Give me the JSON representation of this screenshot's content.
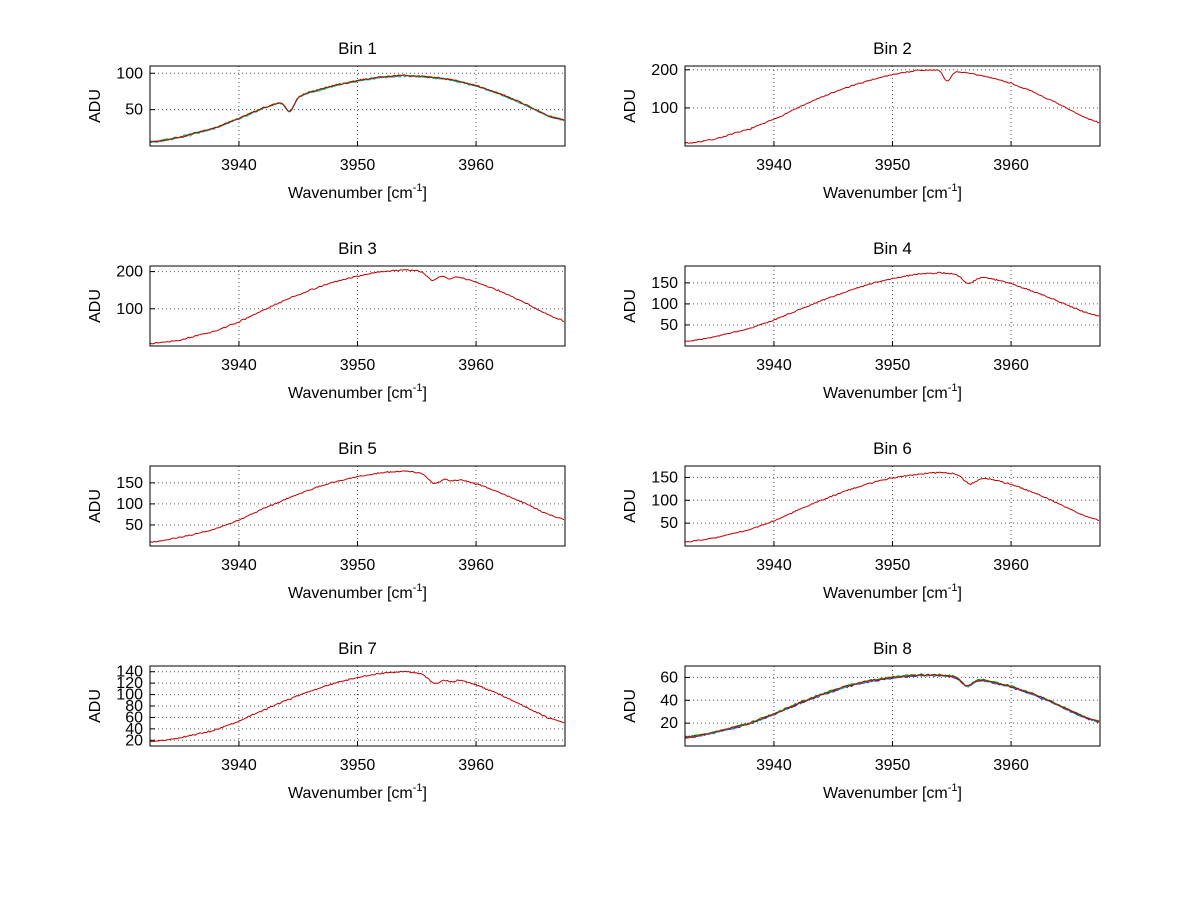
{
  "figure": {
    "background": "#ffffff",
    "ylabel": "ADU",
    "xlabel": {
      "base": "Wavenumber [cm",
      "sup": "-1",
      "end": "]"
    },
    "x_ticks": [
      3940,
      3950,
      3960
    ],
    "xlim": [
      3932.5,
      3967.5
    ],
    "grid_color": "#555555",
    "axis_color": "#000000",
    "trace_color": "#c00000"
  },
  "chart_data": [
    {
      "title": "Bin 1",
      "type": "line",
      "xlabel": "Wavenumber [cm^-1]",
      "ylabel": "ADU",
      "xlim": [
        3932.5,
        3967.5
      ],
      "ylim": [
        0,
        110
      ],
      "y_ticks": [
        50,
        100
      ],
      "x": [
        3933,
        3935,
        3938,
        3940,
        3942,
        3944,
        3946,
        3948,
        3950,
        3952,
        3954,
        3956,
        3958,
        3960,
        3962,
        3964,
        3966,
        3967.5
      ],
      "y": [
        6,
        12,
        25,
        38,
        52,
        63,
        74,
        83,
        90,
        95,
        97,
        95,
        91,
        83,
        72,
        58,
        42,
        35
      ],
      "dips": [
        {
          "x": 3944.3,
          "depth": 17,
          "width": 0.35
        }
      ],
      "noise": 1.3,
      "series": [
        {
          "name": "trace-cyan",
          "color": "#00b6b6",
          "seed": 21,
          "offset": -0.8
        },
        {
          "name": "trace-green",
          "color": "#00a000",
          "seed": 31,
          "offset": 0.3
        },
        {
          "name": "trace-red",
          "color": "#c00000",
          "seed": 41,
          "offset": 0
        }
      ]
    },
    {
      "title": "Bin 2",
      "type": "line",
      "xlabel": "Wavenumber [cm^-1]",
      "ylabel": "ADU",
      "xlim": [
        3932.5,
        3967.5
      ],
      "ylim": [
        0,
        210
      ],
      "y_ticks": [
        100,
        200
      ],
      "x": [
        3933,
        3935,
        3938,
        3940,
        3942,
        3944,
        3946,
        3948,
        3950,
        3952,
        3954,
        3956,
        3958,
        3960,
        3962,
        3964,
        3966,
        3967.5
      ],
      "y": [
        8,
        18,
        45,
        70,
        100,
        128,
        152,
        172,
        188,
        198,
        200,
        193,
        182,
        165,
        140,
        110,
        78,
        60
      ],
      "dips": [
        {
          "x": 3954.6,
          "depth": 28,
          "width": 0.3
        }
      ],
      "noise": 2.2,
      "series": [
        {
          "name": "trace-red",
          "color": "#c00000",
          "seed": 7,
          "offset": 0
        }
      ]
    },
    {
      "title": "Bin 3",
      "type": "line",
      "xlabel": "Wavenumber [cm^-1]",
      "ylabel": "ADU",
      "xlim": [
        3932.5,
        3967.5
      ],
      "ylim": [
        0,
        215
      ],
      "y_ticks": [
        100,
        200
      ],
      "x": [
        3933,
        3935,
        3938,
        3940,
        3942,
        3944,
        3946,
        3948,
        3950,
        3952,
        3954,
        3956,
        3958,
        3960,
        3962,
        3964,
        3966,
        3967.5
      ],
      "y": [
        8,
        16,
        40,
        65,
        95,
        125,
        150,
        172,
        188,
        200,
        205,
        200,
        190,
        172,
        148,
        118,
        85,
        66
      ],
      "dips": [
        {
          "x": 3956.3,
          "depth": 22,
          "width": 0.45
        },
        {
          "x": 3957.7,
          "depth": 10,
          "width": 0.35
        }
      ],
      "noise": 2.2,
      "series": [
        {
          "name": "trace-red",
          "color": "#c00000",
          "seed": 13,
          "offset": 0
        }
      ]
    },
    {
      "title": "Bin 4",
      "type": "line",
      "xlabel": "Wavenumber [cm^-1]",
      "ylabel": "ADU",
      "xlim": [
        3932.5,
        3967.5
      ],
      "ylim": [
        0,
        190
      ],
      "y_ticks": [
        50,
        100,
        150
      ],
      "x": [
        3933,
        3935,
        3938,
        3940,
        3942,
        3944,
        3946,
        3948,
        3950,
        3952,
        3954,
        3956,
        3958,
        3960,
        3962,
        3964,
        3966,
        3967.5
      ],
      "y": [
        12,
        22,
        42,
        62,
        85,
        108,
        128,
        147,
        160,
        170,
        174,
        170,
        162,
        148,
        128,
        106,
        82,
        70
      ],
      "dips": [
        {
          "x": 3956.4,
          "depth": 20,
          "width": 0.5
        }
      ],
      "noise": 2.0,
      "series": [
        {
          "name": "trace-red",
          "color": "#c00000",
          "seed": 17,
          "offset": 0
        }
      ]
    },
    {
      "title": "Bin 5",
      "type": "line",
      "xlabel": "Wavenumber [cm^-1]",
      "ylabel": "ADU",
      "xlim": [
        3932.5,
        3967.5
      ],
      "ylim": [
        0,
        190
      ],
      "y_ticks": [
        50,
        100,
        150
      ],
      "x": [
        3933,
        3935,
        3938,
        3940,
        3942,
        3944,
        3946,
        3948,
        3950,
        3952,
        3954,
        3956,
        3958,
        3960,
        3962,
        3964,
        3966,
        3967.5
      ],
      "y": [
        10,
        20,
        40,
        62,
        88,
        112,
        134,
        152,
        165,
        174,
        178,
        172,
        163,
        148,
        127,
        103,
        76,
        62
      ],
      "dips": [
        {
          "x": 3956.5,
          "depth": 22,
          "width": 0.5
        },
        {
          "x": 3957.9,
          "depth": 9,
          "width": 0.35
        }
      ],
      "noise": 2.0,
      "series": [
        {
          "name": "trace-red",
          "color": "#c00000",
          "seed": 23,
          "offset": 0
        }
      ]
    },
    {
      "title": "Bin 6",
      "type": "line",
      "xlabel": "Wavenumber [cm^-1]",
      "ylabel": "ADU",
      "xlim": [
        3932.5,
        3967.5
      ],
      "ylim": [
        0,
        175
      ],
      "y_ticks": [
        50,
        100,
        150
      ],
      "x": [
        3933,
        3935,
        3938,
        3940,
        3942,
        3944,
        3946,
        3948,
        3950,
        3952,
        3954,
        3956,
        3958,
        3960,
        3962,
        3964,
        3966,
        3967.5
      ],
      "y": [
        10,
        18,
        36,
        55,
        78,
        100,
        120,
        137,
        149,
        157,
        161,
        156,
        148,
        135,
        116,
        93,
        68,
        56
      ],
      "dips": [
        {
          "x": 3956.5,
          "depth": 18,
          "width": 0.5
        }
      ],
      "noise": 1.8,
      "series": [
        {
          "name": "trace-red",
          "color": "#c00000",
          "seed": 29,
          "offset": 0
        }
      ]
    },
    {
      "title": "Bin 7",
      "type": "line",
      "xlabel": "Wavenumber [cm^-1]",
      "ylabel": "ADU",
      "xlim": [
        3932.5,
        3967.5
      ],
      "ylim": [
        10,
        150
      ],
      "y_ticks": [
        20,
        40,
        60,
        80,
        100,
        120,
        140
      ],
      "x": [
        3933,
        3935,
        3938,
        3940,
        3942,
        3944,
        3946,
        3948,
        3950,
        3952,
        3954,
        3956,
        3958,
        3960,
        3962,
        3964,
        3966,
        3967.5
      ],
      "y": [
        18,
        24,
        38,
        54,
        72,
        90,
        106,
        120,
        130,
        137,
        140,
        136,
        129,
        117,
        100,
        80,
        60,
        50
      ],
      "dips": [
        {
          "x": 3956.5,
          "depth": 15,
          "width": 0.5
        },
        {
          "x": 3957.8,
          "depth": 7,
          "width": 0.35
        }
      ],
      "noise": 1.6,
      "series": [
        {
          "name": "trace-red",
          "color": "#c00000",
          "seed": 37,
          "offset": 0
        }
      ]
    },
    {
      "title": "Bin 8",
      "type": "line",
      "xlabel": "Wavenumber [cm^-1]",
      "ylabel": "ADU",
      "xlim": [
        3932.5,
        3967.5
      ],
      "ylim": [
        0,
        70
      ],
      "y_ticks": [
        20,
        40,
        60
      ],
      "x": [
        3933,
        3935,
        3938,
        3940,
        3942,
        3944,
        3946,
        3948,
        3950,
        3952,
        3954,
        3956,
        3958,
        3960,
        3962,
        3964,
        3966,
        3967.5
      ],
      "y": [
        8,
        12,
        20,
        28,
        37,
        45,
        52,
        57,
        60,
        62,
        62,
        60,
        57,
        52,
        45,
        36,
        26,
        21
      ],
      "dips": [
        {
          "x": 3956.3,
          "depth": 7,
          "width": 0.45
        }
      ],
      "noise": 0.9,
      "series": [
        {
          "name": "trace-blue",
          "color": "#2222cc",
          "seed": 51,
          "offset": -0.6
        },
        {
          "name": "trace-cyan",
          "color": "#00b6b6",
          "seed": 61,
          "offset": -0.3
        },
        {
          "name": "trace-green",
          "color": "#00a000",
          "seed": 71,
          "offset": 0.4
        },
        {
          "name": "trace-red",
          "color": "#c00000",
          "seed": 81,
          "offset": 0
        }
      ]
    }
  ]
}
